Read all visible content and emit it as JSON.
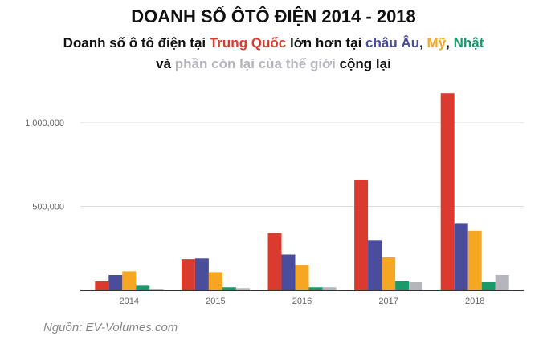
{
  "title": "DOANH SỐ ÔTÔ ĐIỆN 2014 - 2018",
  "subtitle": {
    "line1": [
      {
        "text": "Doanh số ô tô điện tại ",
        "color": "#111111"
      },
      {
        "text": "Trung Quốc",
        "color": "#db3a2e"
      },
      {
        "text": " lớn hơn tại ",
        "color": "#111111"
      },
      {
        "text": "châu Âu",
        "color": "#4a4c9c"
      },
      {
        "text": ", ",
        "color": "#111111"
      },
      {
        "text": "Mỹ",
        "color": "#f5a623"
      },
      {
        "text": ", ",
        "color": "#111111"
      },
      {
        "text": "Nhật",
        "color": "#1a9a6a"
      }
    ],
    "line2": [
      {
        "text": "và ",
        "color": "#111111"
      },
      {
        "text": "phần còn lại của thế giới",
        "color": "#b5b5bc"
      },
      {
        "text": " cộng lại",
        "color": "#111111"
      }
    ]
  },
  "source": "Nguồn: EV-Volumes.com",
  "chart_data": {
    "type": "bar",
    "categories": [
      "2014",
      "2015",
      "2016",
      "2017",
      "2018"
    ],
    "series": [
      {
        "color": "#db3a2e",
        "values": [
          53000,
          186000,
          342000,
          660000,
          1176000
        ]
      },
      {
        "color": "#4a4c9c",
        "values": [
          91000,
          190000,
          213000,
          300000,
          400000
        ]
      },
      {
        "color": "#f5a623",
        "values": [
          113000,
          108000,
          151000,
          197000,
          355000
        ]
      },
      {
        "color": "#1a9a6a",
        "values": [
          27000,
          18000,
          18000,
          54000,
          48000
        ]
      },
      {
        "color": "#b5b5bc",
        "values": [
          5000,
          13000,
          18000,
          48000,
          91000
        ]
      }
    ],
    "yticks": [
      500000,
      1000000
    ],
    "ytick_labels": [
      "500,000",
      "1,000,000"
    ],
    "ylim": [
      0,
      1250000
    ],
    "grid": true,
    "legend": "none (colors explained in subtitle)"
  }
}
